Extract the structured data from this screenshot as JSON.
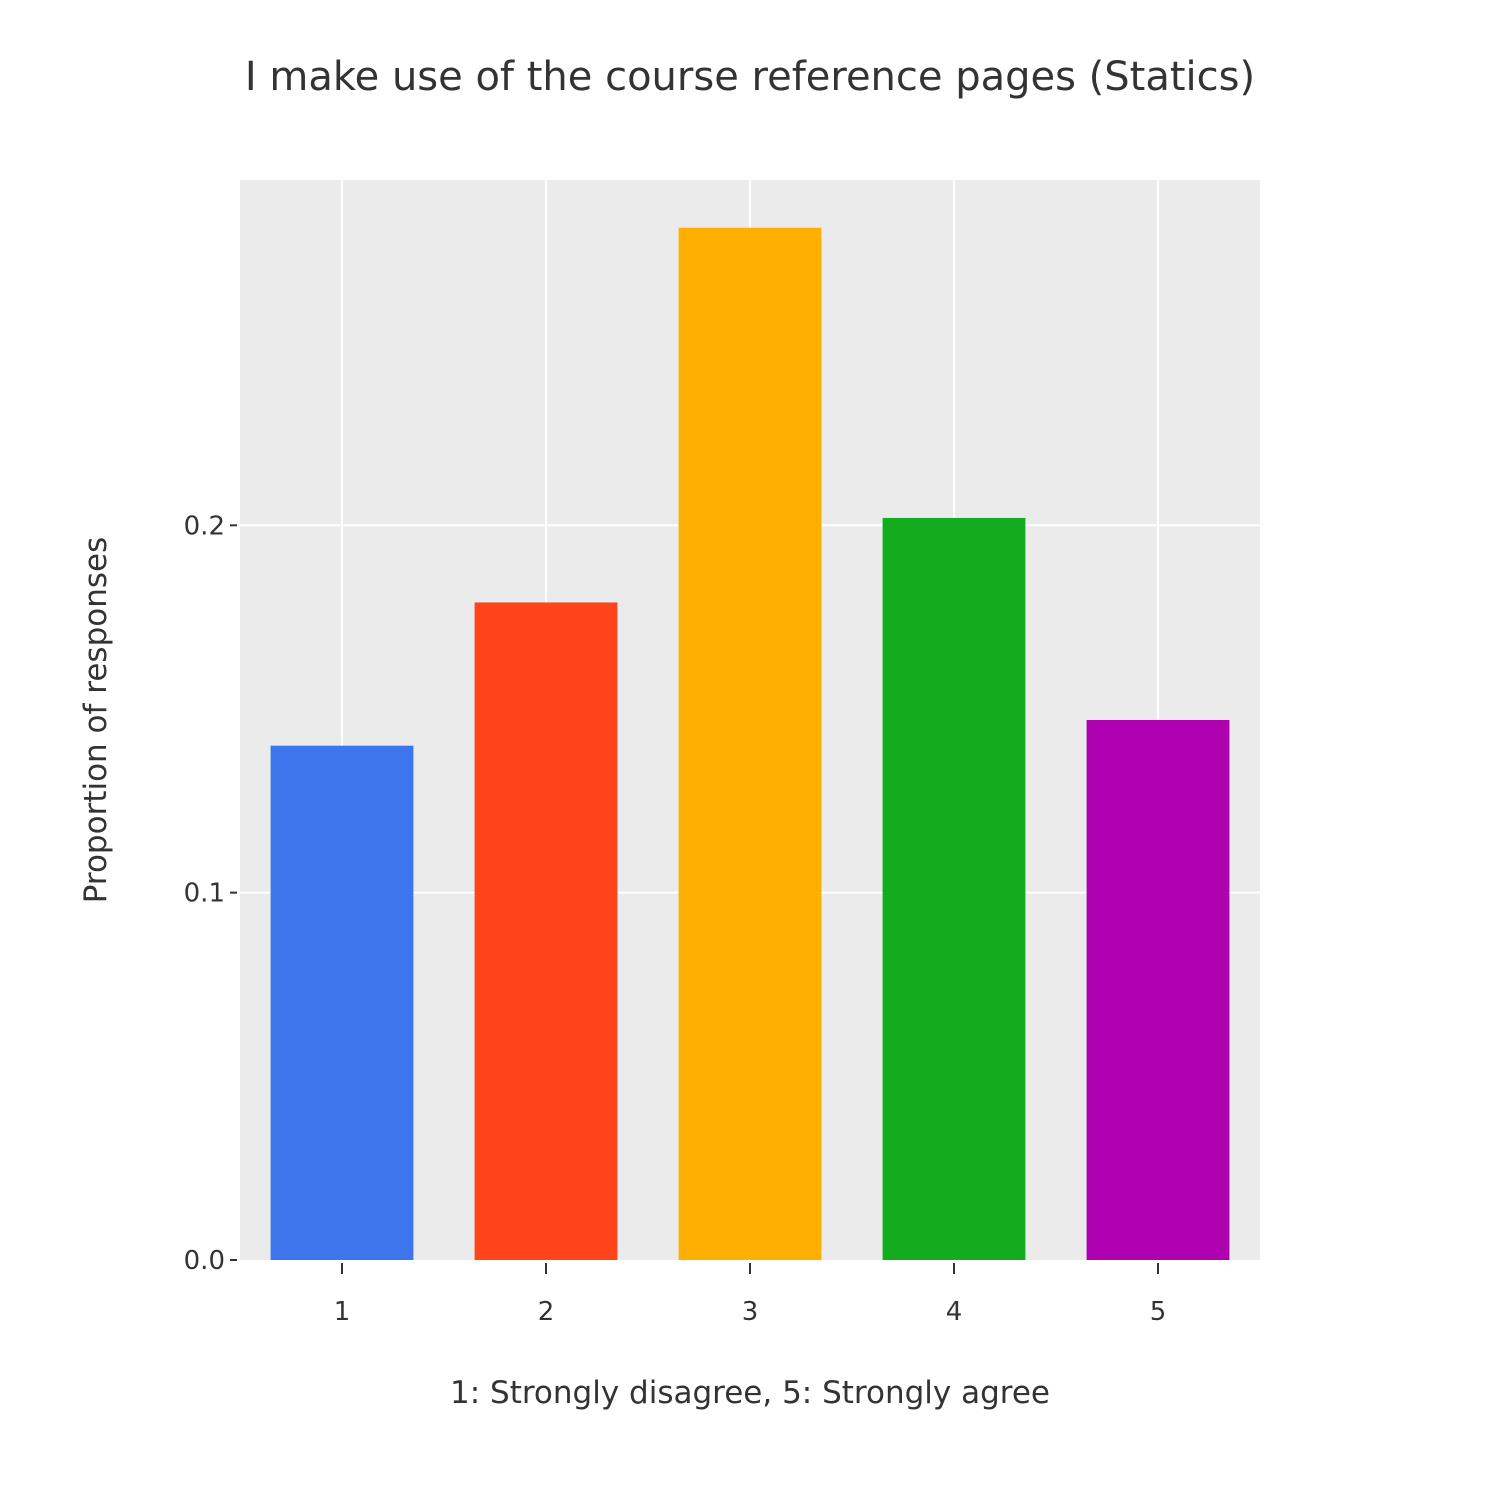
{
  "chart_data": {
    "type": "bar",
    "title": "I make use of the course reference pages (Statics)",
    "xlabel": "1: Strongly disagree, 5: Strongly agree",
    "ylabel": "Proportion of responses",
    "categories": [
      "1",
      "2",
      "3",
      "4",
      "5"
    ],
    "values": [
      0.14,
      0.179,
      0.281,
      0.202,
      0.147
    ],
    "colors": [
      "#3d76ec",
      "#ff4419",
      "#ffaf00",
      "#14ac1f",
      "#af00b0"
    ],
    "ylim": [
      0,
      0.294
    ],
    "yticks": [
      0,
      0.1,
      0.2
    ],
    "ytick_labels": [
      "0.0",
      "0.1",
      "0.2"
    ],
    "grid": true,
    "plot_background": "#ebebeb",
    "grid_color": "#ffffff"
  }
}
